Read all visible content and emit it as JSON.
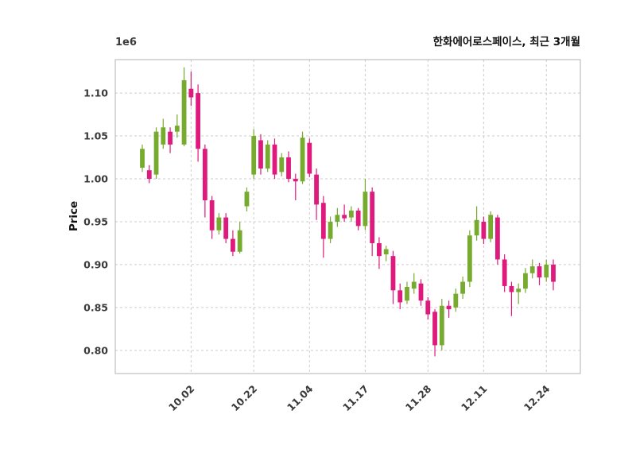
{
  "title": "한화에어로스페이스, 최근 3개월",
  "y_axis_label": "Price",
  "offset_text": "1e6",
  "chart_data": {
    "type": "candlestick",
    "title": "한화에어로스페이스, 최근 3개월",
    "ylabel": "Price",
    "unit_multiplier": "1e6",
    "grid": true,
    "legend": "none",
    "ylim": [
      0.773,
      1.139
    ],
    "y_ticks": [
      0.8,
      0.85,
      0.9,
      0.95,
      1.0,
      1.05,
      1.1
    ],
    "x_ticks": [
      {
        "index": 7,
        "label": "10.02"
      },
      {
        "index": 16,
        "label": "10.22"
      },
      {
        "index": 24,
        "label": "11.04"
      },
      {
        "index": 32,
        "label": "11.17"
      },
      {
        "index": 41,
        "label": "11.28"
      },
      {
        "index": 49,
        "label": "12.11"
      },
      {
        "index": 58,
        "label": "12.24"
      }
    ],
    "colors": {
      "up": "#77ab2f",
      "down": "#de1a7d",
      "grid": "#cccccc",
      "spine": "#b3b3b3",
      "tick_text": "#3a3a3a",
      "title_text": "#111111"
    },
    "values_unit": "millions (1e6)",
    "ohlc_order": [
      "open",
      "high",
      "low",
      "close"
    ],
    "ohlc": [
      [
        1.013,
        1.04,
        1.008,
        1.035
      ],
      [
        1.01,
        1.016,
        0.995,
        1.0
      ],
      [
        1.005,
        1.06,
        1.0,
        1.055
      ],
      [
        1.04,
        1.07,
        1.035,
        1.06
      ],
      [
        1.055,
        1.06,
        1.03,
        1.04
      ],
      [
        1.055,
        1.075,
        1.048,
        1.062
      ],
      [
        1.04,
        1.13,
        1.038,
        1.115
      ],
      [
        1.105,
        1.125,
        1.085,
        1.095
      ],
      [
        1.1,
        1.11,
        1.02,
        1.035
      ],
      [
        1.035,
        1.04,
        0.955,
        0.975
      ],
      [
        0.975,
        0.98,
        0.93,
        0.94
      ],
      [
        0.94,
        0.96,
        0.935,
        0.955
      ],
      [
        0.955,
        0.96,
        0.925,
        0.93
      ],
      [
        0.93,
        0.94,
        0.91,
        0.915
      ],
      [
        0.915,
        0.95,
        0.913,
        0.94
      ],
      [
        0.968,
        0.99,
        0.962,
        0.985
      ],
      [
        1.005,
        1.058,
        1.0,
        1.05
      ],
      [
        1.045,
        1.052,
        1.005,
        1.012
      ],
      [
        1.012,
        1.045,
        1.008,
        1.04
      ],
      [
        1.04,
        1.047,
        1.0,
        1.005
      ],
      [
        1.008,
        1.03,
        1.003,
        1.025
      ],
      [
        1.025,
        1.032,
        0.996,
        1.0
      ],
      [
        1.0,
        1.006,
        0.975,
        0.997
      ],
      [
        0.997,
        1.055,
        0.994,
        1.048
      ],
      [
        1.042,
        1.047,
        1.002,
        1.006
      ],
      [
        1.005,
        1.012,
        0.952,
        0.97
      ],
      [
        0.972,
        0.98,
        0.908,
        0.93
      ],
      [
        0.93,
        0.956,
        0.925,
        0.95
      ],
      [
        0.95,
        0.966,
        0.944,
        0.958
      ],
      [
        0.958,
        0.97,
        0.95,
        0.954
      ],
      [
        0.955,
        0.968,
        0.95,
        0.963
      ],
      [
        0.963,
        0.966,
        0.94,
        0.945
      ],
      [
        0.945,
        1.0,
        0.94,
        0.985
      ],
      [
        0.985,
        0.99,
        0.91,
        0.925
      ],
      [
        0.925,
        0.932,
        0.895,
        0.91
      ],
      [
        0.912,
        0.922,
        0.904,
        0.918
      ],
      [
        0.91,
        0.916,
        0.854,
        0.87
      ],
      [
        0.87,
        0.878,
        0.848,
        0.856
      ],
      [
        0.858,
        0.88,
        0.854,
        0.874
      ],
      [
        0.872,
        0.89,
        0.866,
        0.88
      ],
      [
        0.878,
        0.883,
        0.852,
        0.858
      ],
      [
        0.858,
        0.862,
        0.836,
        0.842
      ],
      [
        0.845,
        0.848,
        0.793,
        0.806
      ],
      [
        0.806,
        0.86,
        0.8,
        0.852
      ],
      [
        0.852,
        0.858,
        0.838,
        0.848
      ],
      [
        0.85,
        0.872,
        0.845,
        0.866
      ],
      [
        0.866,
        0.886,
        0.86,
        0.88
      ],
      [
        0.88,
        0.94,
        0.874,
        0.934
      ],
      [
        0.934,
        0.968,
        0.928,
        0.952
      ],
      [
        0.95,
        0.956,
        0.924,
        0.93
      ],
      [
        0.93,
        0.962,
        0.926,
        0.958
      ],
      [
        0.955,
        0.958,
        0.9,
        0.906
      ],
      [
        0.906,
        0.912,
        0.868,
        0.875
      ],
      [
        0.875,
        0.88,
        0.84,
        0.868
      ],
      [
        0.868,
        0.878,
        0.854,
        0.872
      ],
      [
        0.872,
        0.896,
        0.867,
        0.89
      ],
      [
        0.89,
        0.906,
        0.884,
        0.898
      ],
      [
        0.898,
        0.902,
        0.876,
        0.885
      ],
      [
        0.885,
        0.906,
        0.88,
        0.9
      ],
      [
        0.9,
        0.906,
        0.87,
        0.88
      ]
    ]
  }
}
